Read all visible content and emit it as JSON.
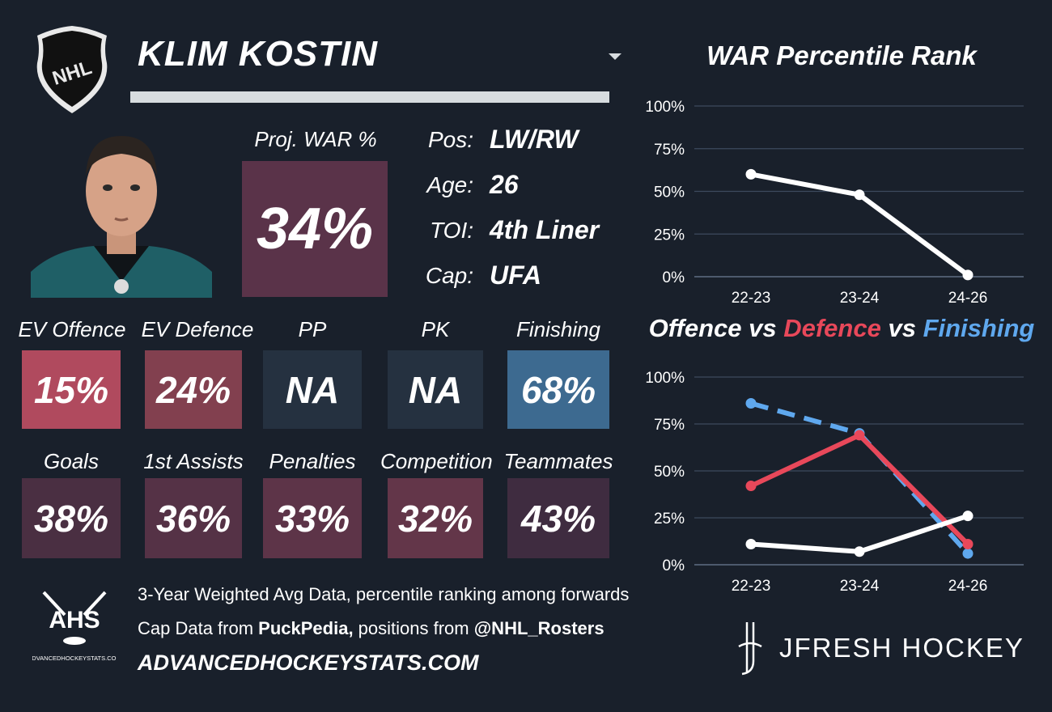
{
  "player": {
    "name": "KLIM KOSTIN"
  },
  "proj_war": {
    "label": "Proj. WAR %",
    "value": "34%"
  },
  "bio": [
    {
      "key": "Pos:",
      "value": "LW/RW"
    },
    {
      "key": "Age:",
      "value": "26"
    },
    {
      "key": "TOI:",
      "value": "4th Liner"
    },
    {
      "key": "Cap:",
      "value": "UFA"
    }
  ],
  "metrics_row1": [
    {
      "label": "EV Offence",
      "value": "15%",
      "color": "#b04a5e"
    },
    {
      "label": "EV Defence",
      "value": "24%",
      "color": "#82404f"
    },
    {
      "label": "PP",
      "value": "NA",
      "color": "#253140"
    },
    {
      "label": "PK",
      "value": "NA",
      "color": "#253140"
    },
    {
      "label": "Finishing",
      "value": "68%",
      "color": "#3d6a90"
    }
  ],
  "metrics_row2": [
    {
      "label": "Goals",
      "value": "38%",
      "color": "#4a2f42"
    },
    {
      "label": "1st Assists",
      "value": "36%",
      "color": "#553246"
    },
    {
      "label": "Penalties",
      "value": "33%",
      "color": "#5d3448"
    },
    {
      "label": "Competition",
      "value": "32%",
      "color": "#633649"
    },
    {
      "label": "Teammates",
      "value": "43%",
      "color": "#3f2c40"
    }
  ],
  "charts": {
    "war_title": "WAR Percentile Rank",
    "ovd_title": {
      "part1": "Offence vs ",
      "part2": "Defence",
      "part3": " vs ",
      "part4": "Finishing"
    },
    "title_colors": {
      "defence": "#e8485a",
      "finishing": "#5fa8ee"
    }
  },
  "chart_data": [
    {
      "type": "line",
      "title": "WAR Percentile Rank",
      "categories": [
        "22-23",
        "23-24",
        "24-26"
      ],
      "yticks": [
        "100%",
        "75%",
        "50%",
        "25%",
        "0%"
      ],
      "ylim": [
        0,
        100
      ],
      "series": [
        {
          "values": [
            60,
            48,
            1
          ],
          "color": "#ffffff",
          "dash": false
        }
      ]
    },
    {
      "type": "line",
      "title": "Offence vs Defence vs Finishing",
      "categories": [
        "22-23",
        "23-24",
        "24-26"
      ],
      "yticks": [
        "100%",
        "75%",
        "50%",
        "25%",
        "0%"
      ],
      "ylim": [
        0,
        100
      ],
      "series": [
        {
          "name": "Finishing",
          "values": [
            86,
            70,
            6
          ],
          "color": "#5fa8ee",
          "dash": true
        },
        {
          "name": "Defence",
          "values": [
            42,
            69,
            11
          ],
          "color": "#e8485a",
          "dash": false
        },
        {
          "name": "Offence",
          "values": [
            11,
            7,
            26
          ],
          "color": "#ffffff",
          "dash": false
        }
      ]
    }
  ],
  "footer": {
    "line1": "3-Year Weighted Avg Data, percentile ranking among forwards",
    "line2_pre": "Cap Data from ",
    "line2_src1": "PuckPedia,",
    "line2_mid": " positions from ",
    "line2_src2": "@NHL_Rosters",
    "url": "ADVANCEDHOCKEYSTATS.COM",
    "ahs_logo_text": "AHS",
    "ahs_logo_sub": "ADVANCEDHOCKEYSTATS.COM",
    "brand": "JFRESH HOCKEY"
  }
}
